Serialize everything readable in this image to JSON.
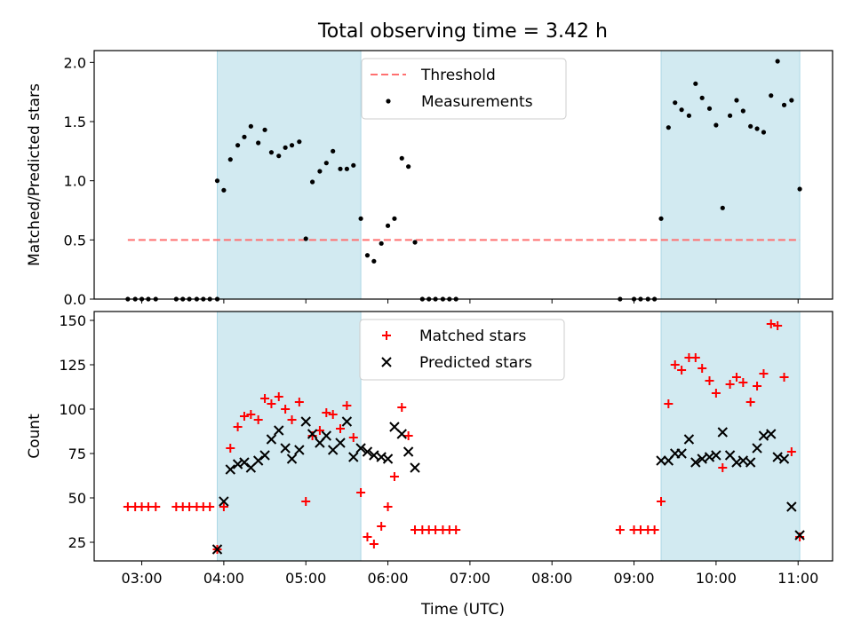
{
  "figure": {
    "title": "Total observing time = 3.42 h",
    "xlabel": "Time (UTC)",
    "shade_color": "#add8e6"
  },
  "chart_data": [
    {
      "type": "scatter",
      "ylabel": "Matched/Predicted stars",
      "xlim": [
        2.42,
        11.42
      ],
      "ylim": [
        0,
        2.1
      ],
      "yticks": [
        "0.0",
        "0.5",
        "1.0",
        "1.5",
        "2.0"
      ],
      "xticks": [
        "03:00",
        "04:00",
        "05:00",
        "06:00",
        "07:00",
        "08:00",
        "09:00",
        "10:00",
        "11:00"
      ],
      "shaded_intervals": [
        [
          3.92,
          5.67
        ],
        [
          9.33,
          11.02
        ]
      ],
      "legend": {
        "location": "upper-center"
      },
      "threshold": {
        "name": "Threshold",
        "value": 0.5,
        "x": [
          2.83,
          11.02
        ],
        "color": "#ff7070",
        "style": "dashed"
      },
      "series": [
        {
          "name": "Measurements",
          "color": "#000000",
          "marker": "dot",
          "points": [
            [
              2.83,
              0
            ],
            [
              2.92,
              0
            ],
            [
              3.0,
              0
            ],
            [
              3.08,
              0
            ],
            [
              3.17,
              0
            ],
            [
              3.42,
              0
            ],
            [
              3.5,
              0
            ],
            [
              3.58,
              0
            ],
            [
              3.67,
              0
            ],
            [
              3.75,
              0
            ],
            [
              3.83,
              0
            ],
            [
              3.92,
              0
            ],
            [
              3.92,
              1.0
            ],
            [
              4.0,
              0.92
            ],
            [
              4.08,
              1.18
            ],
            [
              4.17,
              1.3
            ],
            [
              4.25,
              1.37
            ],
            [
              4.33,
              1.46
            ],
            [
              4.42,
              1.32
            ],
            [
              4.5,
              1.43
            ],
            [
              4.58,
              1.24
            ],
            [
              4.67,
              1.21
            ],
            [
              4.75,
              1.28
            ],
            [
              4.83,
              1.3
            ],
            [
              4.92,
              1.33
            ],
            [
              5.0,
              0.51
            ],
            [
              5.08,
              0.99
            ],
            [
              5.17,
              1.08
            ],
            [
              5.25,
              1.15
            ],
            [
              5.33,
              1.25
            ],
            [
              5.42,
              1.1
            ],
            [
              5.5,
              1.1
            ],
            [
              5.58,
              1.13
            ],
            [
              5.67,
              0.68
            ],
            [
              5.75,
              0.37
            ],
            [
              5.83,
              0.32
            ],
            [
              5.92,
              0.47
            ],
            [
              6.0,
              0.62
            ],
            [
              6.08,
              0.68
            ],
            [
              6.17,
              1.19
            ],
            [
              6.25,
              1.12
            ],
            [
              6.33,
              0.48
            ],
            [
              6.42,
              0
            ],
            [
              6.5,
              0
            ],
            [
              6.58,
              0
            ],
            [
              6.67,
              0
            ],
            [
              6.75,
              0
            ],
            [
              6.83,
              0
            ],
            [
              8.83,
              0
            ],
            [
              9.0,
              0
            ],
            [
              9.08,
              0
            ],
            [
              9.17,
              0
            ],
            [
              9.25,
              0
            ],
            [
              9.33,
              0.68
            ],
            [
              9.42,
              1.45
            ],
            [
              9.5,
              1.66
            ],
            [
              9.58,
              1.6
            ],
            [
              9.67,
              1.55
            ],
            [
              9.75,
              1.82
            ],
            [
              9.83,
              1.7
            ],
            [
              9.92,
              1.61
            ],
            [
              10.0,
              1.47
            ],
            [
              10.08,
              0.77
            ],
            [
              10.17,
              1.55
            ],
            [
              10.25,
              1.68
            ],
            [
              10.33,
              1.59
            ],
            [
              10.42,
              1.46
            ],
            [
              10.5,
              1.44
            ],
            [
              10.58,
              1.41
            ],
            [
              10.67,
              1.72
            ],
            [
              10.75,
              2.01
            ],
            [
              10.83,
              1.64
            ],
            [
              10.92,
              1.68
            ],
            [
              11.02,
              0.93
            ]
          ]
        }
      ]
    },
    {
      "type": "scatter",
      "ylabel": "Count",
      "xlim": [
        2.42,
        11.42
      ],
      "ylim": [
        14.5,
        155
      ],
      "yticks": [
        "25",
        "50",
        "75",
        "100",
        "125",
        "150"
      ],
      "xticks": [
        "03:00",
        "04:00",
        "05:00",
        "06:00",
        "07:00",
        "08:00",
        "09:00",
        "10:00",
        "11:00"
      ],
      "shaded_intervals": [
        [
          3.92,
          5.67
        ],
        [
          9.33,
          11.02
        ]
      ],
      "legend": {
        "location": "upper-center"
      },
      "series": [
        {
          "name": "Matched stars",
          "color": "#ff0000",
          "marker": "plus",
          "points": [
            [
              2.83,
              45
            ],
            [
              2.92,
              45
            ],
            [
              3.0,
              45
            ],
            [
              3.08,
              45
            ],
            [
              3.17,
              45
            ],
            [
              3.42,
              45
            ],
            [
              3.5,
              45
            ],
            [
              3.58,
              45
            ],
            [
              3.67,
              45
            ],
            [
              3.75,
              45
            ],
            [
              3.83,
              45
            ],
            [
              3.92,
              21
            ],
            [
              4.0,
              45
            ],
            [
              4.08,
              78
            ],
            [
              4.17,
              90
            ],
            [
              4.25,
              96
            ],
            [
              4.33,
              97
            ],
            [
              4.42,
              94
            ],
            [
              4.5,
              106
            ],
            [
              4.58,
              103
            ],
            [
              4.67,
              107
            ],
            [
              4.75,
              100
            ],
            [
              4.83,
              94
            ],
            [
              4.92,
              104
            ],
            [
              5.0,
              48
            ],
            [
              5.08,
              85
            ],
            [
              5.17,
              88
            ],
            [
              5.25,
              98
            ],
            [
              5.33,
              97
            ],
            [
              5.42,
              89
            ],
            [
              5.5,
              102
            ],
            [
              5.58,
              84
            ],
            [
              5.67,
              53
            ],
            [
              5.75,
              28
            ],
            [
              5.83,
              24
            ],
            [
              5.92,
              34
            ],
            [
              6.0,
              45
            ],
            [
              6.08,
              62
            ],
            [
              6.17,
              101
            ],
            [
              6.25,
              85
            ],
            [
              6.33,
              32
            ],
            [
              6.42,
              32
            ],
            [
              6.5,
              32
            ],
            [
              6.58,
              32
            ],
            [
              6.67,
              32
            ],
            [
              6.75,
              32
            ],
            [
              6.83,
              32
            ],
            [
              8.83,
              32
            ],
            [
              9.0,
              32
            ],
            [
              9.08,
              32
            ],
            [
              9.17,
              32
            ],
            [
              9.25,
              32
            ],
            [
              9.33,
              48
            ],
            [
              9.42,
              103
            ],
            [
              9.5,
              125
            ],
            [
              9.58,
              122
            ],
            [
              9.67,
              129
            ],
            [
              9.75,
              129
            ],
            [
              9.83,
              123
            ],
            [
              9.92,
              116
            ],
            [
              10.0,
              109
            ],
            [
              10.08,
              67
            ],
            [
              10.17,
              114
            ],
            [
              10.25,
              118
            ],
            [
              10.33,
              115
            ],
            [
              10.42,
              104
            ],
            [
              10.5,
              113
            ],
            [
              10.58,
              120
            ],
            [
              10.67,
              148
            ],
            [
              10.75,
              147
            ],
            [
              10.83,
              118
            ],
            [
              10.92,
              76
            ],
            [
              11.02,
              28
            ]
          ]
        },
        {
          "name": "Predicted stars",
          "color": "#000000",
          "marker": "x",
          "points": [
            [
              3.92,
              21
            ],
            [
              4.0,
              48
            ],
            [
              4.08,
              66
            ],
            [
              4.17,
              69
            ],
            [
              4.25,
              70
            ],
            [
              4.33,
              67
            ],
            [
              4.42,
              71
            ],
            [
              4.5,
              74
            ],
            [
              4.58,
              83
            ],
            [
              4.67,
              88
            ],
            [
              4.75,
              78
            ],
            [
              4.83,
              72
            ],
            [
              4.92,
              77
            ],
            [
              5.0,
              93
            ],
            [
              5.08,
              86
            ],
            [
              5.17,
              81
            ],
            [
              5.25,
              85
            ],
            [
              5.33,
              77
            ],
            [
              5.42,
              81
            ],
            [
              5.5,
              93
            ],
            [
              5.58,
              73
            ],
            [
              5.67,
              78
            ],
            [
              5.75,
              76
            ],
            [
              5.83,
              74
            ],
            [
              5.92,
              73
            ],
            [
              6.0,
              72
            ],
            [
              6.08,
              90
            ],
            [
              6.17,
              86
            ],
            [
              6.25,
              76
            ],
            [
              6.33,
              67
            ],
            [
              9.33,
              71
            ],
            [
              9.42,
              71
            ],
            [
              9.5,
              75
            ],
            [
              9.58,
              75
            ],
            [
              9.67,
              83
            ],
            [
              9.75,
              70
            ],
            [
              9.83,
              72
            ],
            [
              9.92,
              73
            ],
            [
              10.0,
              74
            ],
            [
              10.08,
              87
            ],
            [
              10.17,
              74
            ],
            [
              10.25,
              70
            ],
            [
              10.33,
              71
            ],
            [
              10.42,
              70
            ],
            [
              10.5,
              78
            ],
            [
              10.58,
              85
            ],
            [
              10.67,
              86
            ],
            [
              10.75,
              73
            ],
            [
              10.83,
              72
            ],
            [
              10.92,
              45
            ],
            [
              11.02,
              29
            ]
          ]
        }
      ]
    }
  ]
}
